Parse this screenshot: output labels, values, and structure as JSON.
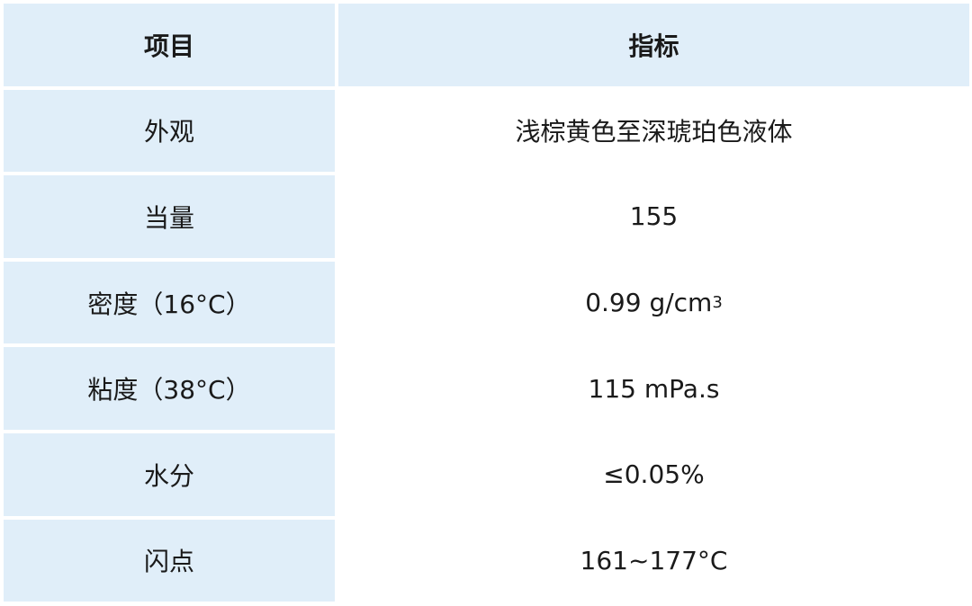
{
  "header": {
    "item": "项目",
    "spec": "指标"
  },
  "rows": [
    {
      "item": "外观",
      "spec": "浅棕黄色至深琥珀色液体"
    },
    {
      "item": "当量",
      "spec": "155"
    },
    {
      "item": "密度（16°C）",
      "spec": "0.99 g/cm",
      "spec_sup": "3"
    },
    {
      "item": "粘度（38°C）",
      "spec": "115 mPa.s"
    },
    {
      "item": "水分",
      "spec": "≤0.05%"
    },
    {
      "item": "闪点",
      "spec": "161~177°C"
    }
  ],
  "colors": {
    "header_bg": "#e0eef9",
    "left_col_bg": "#e0eef9",
    "right_col_bg": "#ffffff"
  }
}
